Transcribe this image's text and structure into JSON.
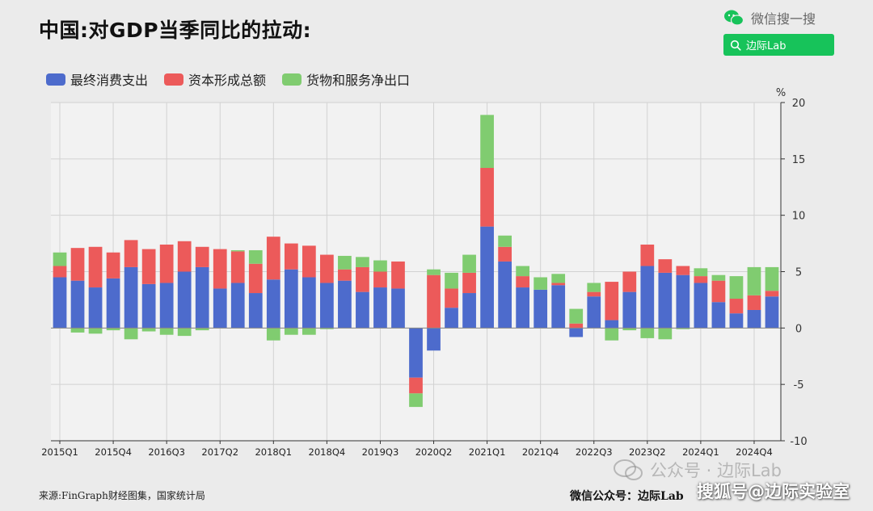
{
  "title": "中国:对GDP当季同比的拉动:",
  "header": {
    "wechat_search_label": "微信搜一搜",
    "search_box_text": "边际Lab"
  },
  "colors": {
    "consumption": "#4d6bcc",
    "capital": "#ec5a5a",
    "net_exports": "#80cc70",
    "brand_green": "#17c35a"
  },
  "footer": {
    "source": "来源:FinGraph财经图集，国家统计局",
    "wechat_account": "微信公众号：边际Lab",
    "watermark_1": "公众号 · 边际Lab",
    "watermark_2": "搜狐号@边际实验室"
  },
  "chart_data": {
    "type": "bar",
    "stacked": true,
    "unit": "%",
    "ylim": [
      -10,
      20
    ],
    "yticks": [
      -10,
      -5,
      0,
      5,
      10,
      15,
      20
    ],
    "y_axis_position": "right",
    "grid": true,
    "legend_position": "top-left",
    "categories": [
      "2015Q1",
      "2015Q2",
      "2015Q3",
      "2015Q4",
      "2016Q1",
      "2016Q2",
      "2016Q3",
      "2016Q4",
      "2017Q1",
      "2017Q2",
      "2017Q3",
      "2017Q4",
      "2018Q1",
      "2018Q2",
      "2018Q3",
      "2018Q4",
      "2019Q1",
      "2019Q2",
      "2019Q3",
      "2019Q4",
      "2020Q1",
      "2020Q2",
      "2020Q3",
      "2020Q4",
      "2021Q1",
      "2021Q2",
      "2021Q3",
      "2021Q4",
      "2022Q1",
      "2022Q2",
      "2022Q3",
      "2022Q4",
      "2023Q1",
      "2023Q2",
      "2023Q3",
      "2023Q4",
      "2024Q1",
      "2024Q2",
      "2024Q3",
      "2024Q4",
      "2025Q1"
    ],
    "xtick_labels": [
      "2015Q1",
      "2015Q4",
      "2016Q3",
      "2017Q2",
      "2018Q1",
      "2018Q4",
      "2019Q3",
      "2020Q2",
      "2021Q1",
      "2021Q4",
      "2022Q3",
      "2023Q2",
      "2024Q1",
      "2024Q4"
    ],
    "series": [
      {
        "name": "最终消费支出",
        "color": "#4d6bcc",
        "values": [
          4.5,
          4.2,
          3.6,
          4.4,
          5.4,
          3.9,
          4.0,
          5.0,
          5.4,
          3.5,
          4.0,
          3.1,
          4.3,
          5.2,
          4.5,
          4.0,
          4.2,
          3.2,
          3.6,
          3.5,
          -4.4,
          -2.0,
          1.8,
          3.1,
          9.0,
          5.9,
          3.6,
          3.4,
          3.8,
          -0.8,
          2.8,
          0.7,
          3.2,
          5.5,
          4.9,
          4.7,
          4.0,
          2.3,
          1.3,
          1.6,
          2.8
        ]
      },
      {
        "name": "资本形成总额",
        "color": "#ec5a5a",
        "values": [
          1.0,
          2.9,
          3.6,
          2.3,
          2.4,
          3.1,
          3.4,
          2.7,
          1.8,
          3.5,
          2.8,
          2.6,
          3.8,
          2.3,
          2.8,
          2.5,
          1.0,
          2.2,
          1.4,
          2.4,
          -1.4,
          4.7,
          1.7,
          1.8,
          5.2,
          1.3,
          1.0,
          0.0,
          0.2,
          0.4,
          0.4,
          3.4,
          1.8,
          1.9,
          1.2,
          0.8,
          0.6,
          1.9,
          1.3,
          1.3,
          0.5
        ]
      },
      {
        "name": "货物和服务净出口",
        "color": "#80cc70",
        "values": [
          1.2,
          -0.4,
          -0.5,
          -0.2,
          -1.0,
          -0.3,
          -0.6,
          -0.7,
          -0.2,
          0.0,
          0.1,
          1.2,
          -1.1,
          -0.6,
          -0.6,
          -0.1,
          1.2,
          0.9,
          1.0,
          0.0,
          -1.2,
          0.5,
          1.4,
          1.6,
          4.7,
          1.0,
          0.9,
          1.1,
          0.8,
          1.3,
          0.8,
          -1.1,
          -0.2,
          -0.9,
          -1.0,
          -0.1,
          0.7,
          0.5,
          2.0,
          2.5,
          2.1
        ]
      }
    ]
  }
}
